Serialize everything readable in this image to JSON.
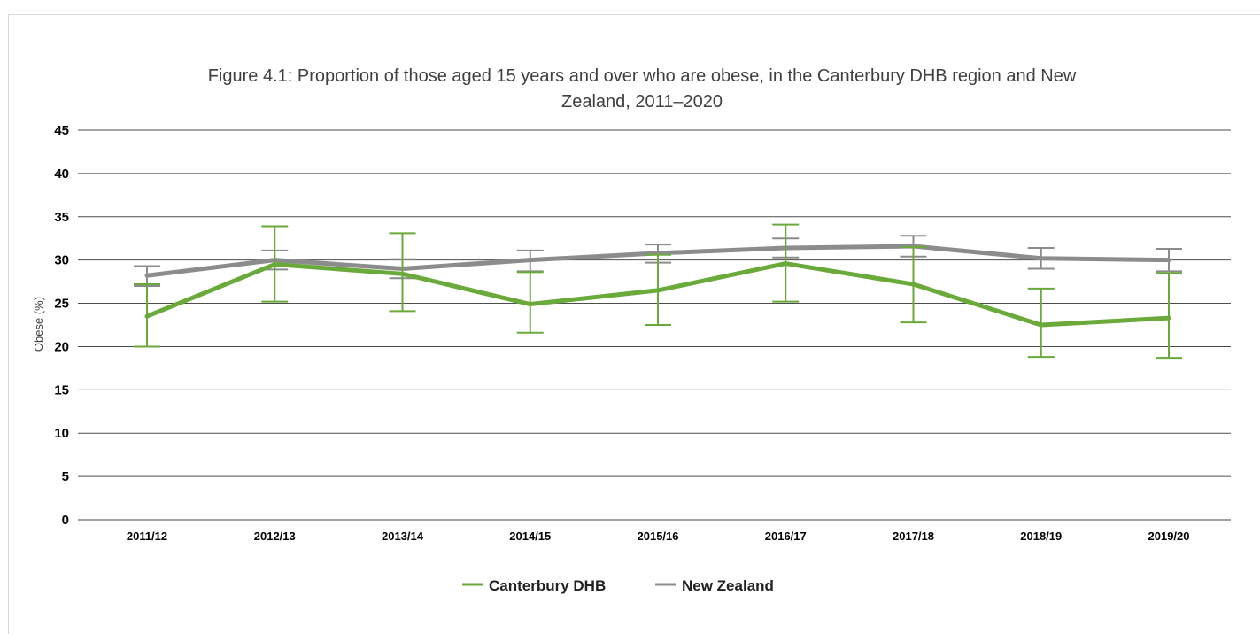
{
  "chart_data": {
    "type": "line",
    "title": "Figure 4.1: Proportion of those aged 15 years and over who are obese, in the Canterbury DHB region and New Zealand, 2011–2020",
    "title_lines": [
      "Figure 4.1: Proportion of those aged 15 years and over who are obese, in the Canterbury DHB region and New",
      "Zealand, 2011–2020"
    ],
    "xlabel": "",
    "ylabel": "Obese (%)",
    "ylim": [
      0,
      45
    ],
    "yticks": [
      0,
      5,
      10,
      15,
      20,
      25,
      30,
      35,
      40,
      45
    ],
    "grid": true,
    "legend_position": "bottom",
    "categories": [
      "2011/12",
      "2012/13",
      "2013/14",
      "2014/15",
      "2015/16",
      "2016/17",
      "2017/18",
      "2018/19",
      "2019/20"
    ],
    "series": [
      {
        "name": "Canterbury DHB",
        "color": "#6aaa3a",
        "values": [
          23.5,
          29.5,
          28.4,
          24.9,
          26.5,
          29.6,
          27.2,
          22.5,
          23.3
        ],
        "error_low": [
          20.0,
          25.2,
          24.1,
          21.6,
          22.5,
          25.2,
          22.8,
          18.8,
          18.7
        ],
        "error_high": [
          27.2,
          33.9,
          33.1,
          28.6,
          30.6,
          34.1,
          31.5,
          26.7,
          28.5
        ]
      },
      {
        "name": "New Zealand",
        "color": "#8c8c8c",
        "values": [
          28.2,
          30.0,
          29.0,
          30.0,
          30.8,
          31.4,
          31.6,
          30.2,
          30.0
        ],
        "error_low": [
          27.0,
          28.9,
          27.9,
          28.7,
          29.7,
          30.3,
          30.4,
          29.0,
          28.7
        ],
        "error_high": [
          29.3,
          31.1,
          30.1,
          31.1,
          31.8,
          32.5,
          32.8,
          31.4,
          31.3
        ]
      }
    ]
  }
}
